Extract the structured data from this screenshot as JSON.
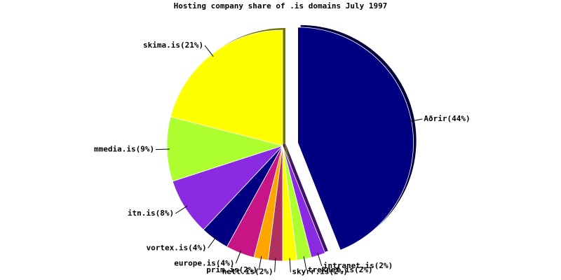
{
  "chart_data": {
    "type": "pie",
    "title": "Hosting company share of .is domains July 1997",
    "values": [
      44,
      2,
      2,
      2,
      2,
      2,
      4,
      4,
      8,
      9,
      21
    ],
    "value_labels": [
      "Aðrir(44%)",
      "intranet.is(2%)",
      "treknet.is(2%)",
      "skyrr.is(2%)",
      "nett.is(2%)",
      "prim.is(2%)",
      "europe.is(4%)",
      "vortex.is(4%)",
      "itn.is(8%)",
      "mmedia.is(9%)",
      "skima.is(21%)"
    ],
    "colors": [
      "#000080",
      "#8a2be2",
      "#adff2f",
      "#ffff00",
      "#b03060",
      "#ffa500",
      "#c71585",
      "#000080",
      "#8a2be2",
      "#adff2f",
      "#ffff00"
    ],
    "exploded": [
      0
    ]
  }
}
